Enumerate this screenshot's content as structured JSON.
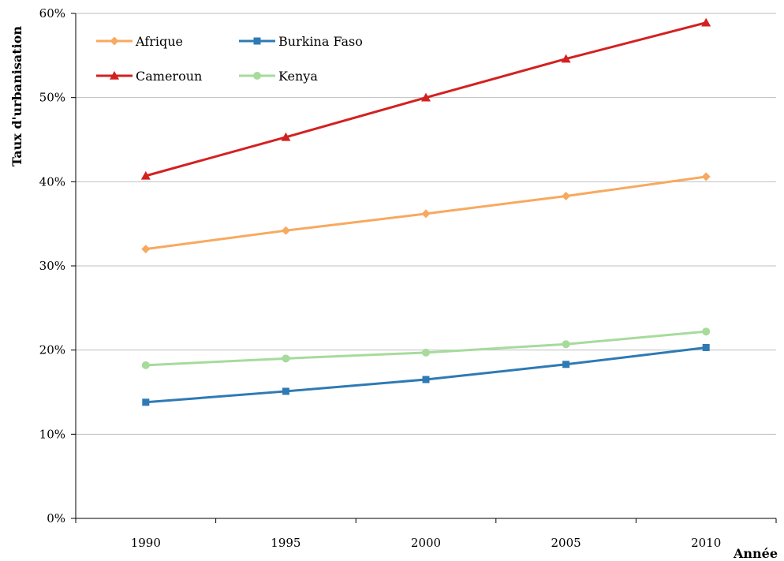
{
  "chart_data": {
    "type": "line",
    "categories": [
      "1990",
      "1995",
      "2000",
      "2005",
      "2010"
    ],
    "ylabel": "Taux d'urbanisation",
    "xlabel": "Année",
    "ylim": [
      0,
      60
    ],
    "yticks": [
      0,
      10,
      20,
      30,
      40,
      50,
      60
    ],
    "ytick_labels": [
      "0%",
      "10%",
      "20%",
      "30%",
      "40%",
      "50%",
      "60%"
    ],
    "grid": "horizontal",
    "legend_position": "top-left",
    "series": [
      {
        "name": "Afrique",
        "color": "#F7A95F",
        "marker": "diamond",
        "values": [
          32.0,
          34.2,
          36.2,
          38.3,
          40.6
        ]
      },
      {
        "name": "Burkina Faso",
        "color": "#2E7AB4",
        "marker": "square",
        "values": [
          13.8,
          15.1,
          16.5,
          18.3,
          20.3
        ]
      },
      {
        "name": "Cameroun",
        "color": "#D42020",
        "marker": "triangle",
        "values": [
          40.7,
          45.3,
          50.0,
          54.6,
          58.9
        ]
      },
      {
        "name": "Kenya",
        "color": "#A6DB9C",
        "marker": "circle",
        "values": [
          18.2,
          19.0,
          19.7,
          20.7,
          22.2
        ]
      }
    ]
  }
}
